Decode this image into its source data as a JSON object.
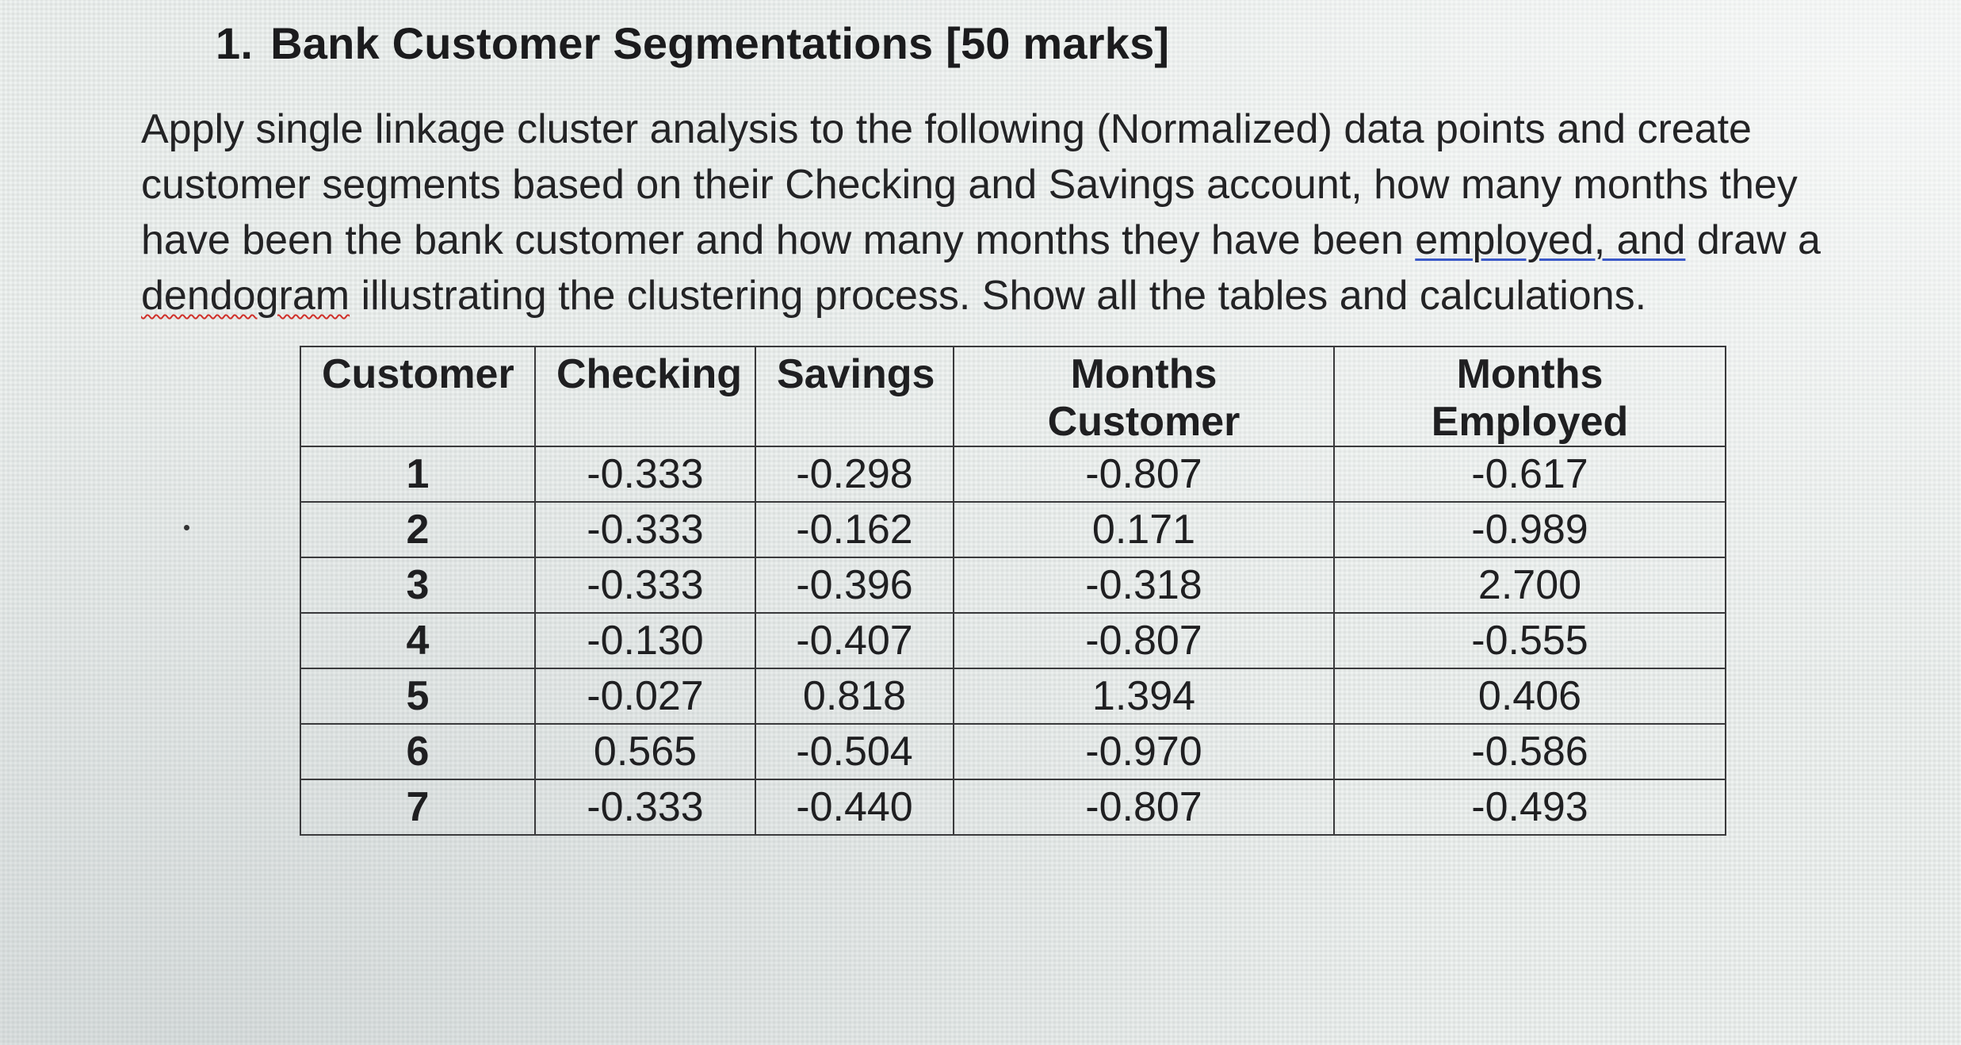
{
  "question": {
    "number": "1.",
    "title": "Bank Customer Segmentations [50 marks]",
    "paragraph": {
      "line1": "Apply single linkage cluster analysis to the following (Normalized) data points and create",
      "line2": "customer segments based on their Checking and Savings account, how many months they",
      "line3_before": "have been the bank customer and how many months they have been ",
      "line3_underlined": "employed, and",
      "line3_after": " draw a",
      "line4_underlined": "dendogram",
      "line4_after": " illustrating the clustering process.  Show all the tables and calculations."
    }
  },
  "table": {
    "headers": {
      "customer": "Customer",
      "checking": "Checking",
      "savings": "Savings",
      "months_customer_1": "Months",
      "months_customer_2": "Customer",
      "months_employed_1": "Months",
      "months_employed_2": "Employed"
    },
    "rows": [
      {
        "customer": "1",
        "checking": "-0.333",
        "savings": "-0.298",
        "months_customer": "-0.807",
        "months_employed": "-0.617"
      },
      {
        "customer": "2",
        "checking": "-0.333",
        "savings": "-0.162",
        "months_customer": "0.171",
        "months_employed": "-0.989"
      },
      {
        "customer": "3",
        "checking": "-0.333",
        "savings": "-0.396",
        "months_customer": "-0.318",
        "months_employed": "2.700"
      },
      {
        "customer": "4",
        "checking": "-0.130",
        "savings": "-0.407",
        "months_customer": "-0.807",
        "months_employed": "-0.555"
      },
      {
        "customer": "5",
        "checking": "-0.027",
        "savings": "0.818",
        "months_customer": "1.394",
        "months_employed": "0.406"
      },
      {
        "customer": "6",
        "checking": "0.565",
        "savings": "-0.504",
        "months_customer": "-0.970",
        "months_employed": "-0.586"
      },
      {
        "customer": "7",
        "checking": "-0.333",
        "savings": "-0.440",
        "months_customer": "-0.807",
        "months_employed": "-0.493"
      }
    ]
  },
  "colors": {
    "background": "#e6ebe9",
    "text": "#1b1b1d",
    "underline_blue": "#3a58c8",
    "spellcheck_red": "#d0302a"
  }
}
